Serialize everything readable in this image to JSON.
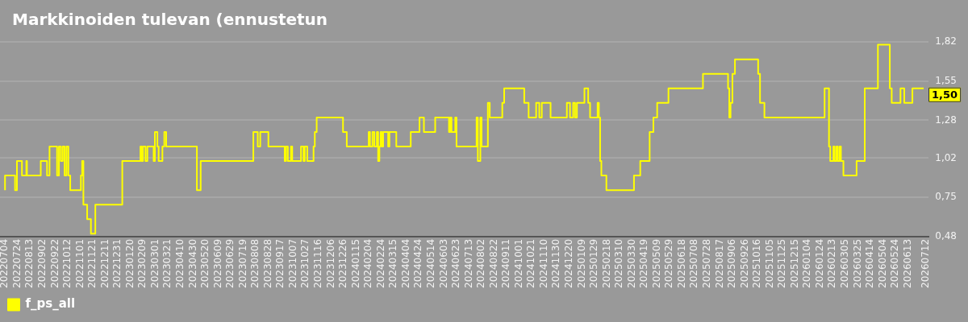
{
  "chart_data": {
    "type": "step",
    "title": "Markkinoiden tulevan (ennustetun",
    "x": [
      "2022-07-04",
      "2022-07-20",
      "2022-07-23",
      "2022-07-31",
      "2022-08-07",
      "2022-08-08",
      "2022-08-30",
      "2022-09-09",
      "2022-09-13",
      "2022-09-25",
      "2022-09-28",
      "2022-10-01",
      "2022-10-04",
      "2022-10-07",
      "2022-10-10",
      "2022-10-13",
      "2022-10-16",
      "2022-11-02",
      "2022-11-04",
      "2022-11-06",
      "2022-11-12",
      "2022-11-18",
      "2022-11-25",
      "2023-01-07",
      "2023-02-05",
      "2023-02-07",
      "2023-02-09",
      "2023-02-13",
      "2023-02-16",
      "2023-02-26",
      "2023-02-28",
      "2023-03-04",
      "2023-03-06",
      "2023-03-12",
      "2023-03-15",
      "2023-03-18",
      "2023-05-06",
      "2023-05-12",
      "2023-08-04",
      "2023-08-11",
      "2023-08-15",
      "2023-08-28",
      "2023-09-23",
      "2023-09-25",
      "2023-09-28",
      "2023-10-03",
      "2023-10-05",
      "2023-10-19",
      "2023-10-23",
      "2023-10-25",
      "2023-10-29",
      "2023-11-08",
      "2023-11-10",
      "2023-11-13",
      "2023-12-25",
      "2023-12-31",
      "2024-02-04",
      "2024-02-06",
      "2024-02-10",
      "2024-02-13",
      "2024-02-17",
      "2024-02-19",
      "2024-02-21",
      "2024-02-23",
      "2024-02-25",
      "2024-02-27",
      "2024-03-06",
      "2024-03-08",
      "2024-03-19",
      "2024-04-11",
      "2024-04-25",
      "2024-05-02",
      "2024-05-20",
      "2024-06-11",
      "2024-06-13",
      "2024-06-15",
      "2024-06-21",
      "2024-06-23",
      "2024-07-25",
      "2024-07-27",
      "2024-07-31",
      "2024-08-02",
      "2024-08-12",
      "2024-08-15",
      "2024-09-04",
      "2024-09-07",
      "2024-10-09",
      "2024-10-16",
      "2024-10-28",
      "2024-11-02",
      "2024-11-06",
      "2024-11-20",
      "2024-12-16",
      "2024-12-21",
      "2024-12-26",
      "2024-12-29",
      "2025-01-01",
      "2025-01-13",
      "2025-01-19",
      "2025-01-22",
      "2025-02-03",
      "2025-02-05",
      "2025-02-07",
      "2025-02-09",
      "2025-02-17",
      "2025-04-02",
      "2025-04-12",
      "2025-04-27",
      "2025-05-03",
      "2025-05-09",
      "2025-05-27",
      "2025-07-21",
      "2025-08-30",
      "2025-09-01",
      "2025-09-03",
      "2025-09-06",
      "2025-09-10",
      "2025-10-17",
      "2025-10-20",
      "2025-10-27",
      "2026-01-31",
      "2026-02-07",
      "2026-02-09",
      "2026-02-14",
      "2026-02-16",
      "2026-02-19",
      "2026-02-21",
      "2026-02-24",
      "2026-02-26",
      "2026-03-02",
      "2026-03-23",
      "2026-04-05",
      "2026-04-26",
      "2026-05-15",
      "2026-05-18",
      "2026-06-01",
      "2026-06-07",
      "2026-06-20",
      "2026-06-26",
      "2026-07-08"
    ],
    "series": [
      {
        "name": "f_ps_all",
        "color": "#ffff00",
        "values": [
          0.8,
          0.9,
          0.8,
          1.0,
          0.9,
          1.0,
          0.9,
          1.0,
          0.9,
          1.1,
          0.9,
          1.1,
          1.0,
          1.1,
          0.9,
          1.1,
          0.9,
          0.8,
          0.9,
          1.0,
          0.7,
          0.6,
          0.5,
          0.7,
          1.0,
          1.1,
          1.0,
          1.1,
          1.0,
          1.1,
          1.0,
          1.2,
          1.1,
          1.0,
          1.1,
          1.2,
          1.1,
          0.8,
          1.0,
          1.2,
          1.1,
          1.2,
          1.1,
          1.0,
          1.1,
          1.0,
          1.1,
          1.0,
          1.1,
          1.0,
          1.1,
          1.0,
          1.1,
          1.2,
          1.3,
          1.2,
          1.1,
          1.2,
          1.1,
          1.2,
          1.1,
          1.2,
          1.0,
          1.1,
          1.2,
          1.1,
          1.2,
          1.1,
          1.2,
          1.1,
          1.2,
          1.3,
          1.2,
          1.3,
          1.2,
          1.3,
          1.2,
          1.3,
          1.1,
          1.3,
          1.0,
          1.3,
          1.1,
          1.4,
          1.3,
          1.4,
          1.5,
          1.4,
          1.3,
          1.4,
          1.3,
          1.4,
          1.3,
          1.4,
          1.3,
          1.4,
          1.3,
          1.4,
          1.5,
          1.4,
          1.3,
          1.4,
          1.3,
          1.0,
          0.9,
          0.8,
          0.9,
          1.0,
          1.2,
          1.3,
          1.4,
          1.5,
          1.6,
          1.5,
          1.3,
          1.4,
          1.6,
          1.7,
          1.6,
          1.4,
          1.3,
          1.5,
          1.1,
          1.0,
          1.1,
          1.0,
          1.1,
          1.0,
          1.1,
          1.0,
          0.9,
          1.0,
          1.5,
          1.8,
          1.5,
          1.4,
          1.5,
          1.4,
          1.5,
          1.5
        ]
      }
    ],
    "xlim": [
      "2022-06-26",
      "2026-07-16"
    ],
    "xticks": [
      {
        "value": "2022-07-04",
        "label": "20220704"
      },
      {
        "value": "2022-07-24",
        "label": "20220724"
      },
      {
        "value": "2022-08-13",
        "label": "20220813"
      },
      {
        "value": "2022-09-02",
        "label": "20220902"
      },
      {
        "value": "2022-09-22",
        "label": "20220922"
      },
      {
        "value": "2022-10-12",
        "label": "20221012"
      },
      {
        "value": "2022-11-01",
        "label": "20221101"
      },
      {
        "value": "2022-11-21",
        "label": "20221121"
      },
      {
        "value": "2022-12-11",
        "label": "20221211"
      },
      {
        "value": "2022-12-31",
        "label": "20221231"
      },
      {
        "value": "2023-01-20",
        "label": "20230120"
      },
      {
        "value": "2023-02-09",
        "label": "20230209"
      },
      {
        "value": "2023-03-01",
        "label": "20230301"
      },
      {
        "value": "2023-03-21",
        "label": "20230321"
      },
      {
        "value": "2023-04-10",
        "label": "20230410"
      },
      {
        "value": "2023-04-30",
        "label": "20230430"
      },
      {
        "value": "2023-05-20",
        "label": "20230520"
      },
      {
        "value": "2023-06-09",
        "label": "20230609"
      },
      {
        "value": "2023-06-29",
        "label": "20230629"
      },
      {
        "value": "2023-07-19",
        "label": "20230719"
      },
      {
        "value": "2023-08-08",
        "label": "20230808"
      },
      {
        "value": "2023-08-28",
        "label": "20230828"
      },
      {
        "value": "2023-09-17",
        "label": "20230917"
      },
      {
        "value": "2023-10-07",
        "label": "20231007"
      },
      {
        "value": "2023-10-27",
        "label": "20231027"
      },
      {
        "value": "2023-11-16",
        "label": "20231116"
      },
      {
        "value": "2023-12-06",
        "label": "20231206"
      },
      {
        "value": "2023-12-26",
        "label": "20231226"
      },
      {
        "value": "2024-01-15",
        "label": "20240115"
      },
      {
        "value": "2024-02-04",
        "label": "20240204"
      },
      {
        "value": "2024-02-24",
        "label": "20240224"
      },
      {
        "value": "2024-03-15",
        "label": "20240315"
      },
      {
        "value": "2024-04-04",
        "label": "20240404"
      },
      {
        "value": "2024-04-24",
        "label": "20240424"
      },
      {
        "value": "2024-05-14",
        "label": "20240514"
      },
      {
        "value": "2024-06-03",
        "label": "20240603"
      },
      {
        "value": "2024-06-23",
        "label": "20240623"
      },
      {
        "value": "2024-07-13",
        "label": "20240713"
      },
      {
        "value": "2024-08-02",
        "label": "20240802"
      },
      {
        "value": "2024-08-22",
        "label": "20240822"
      },
      {
        "value": "2024-09-11",
        "label": "20240911"
      },
      {
        "value": "2024-10-01",
        "label": "20241001"
      },
      {
        "value": "2024-10-21",
        "label": "20241021"
      },
      {
        "value": "2024-11-10",
        "label": "20241110"
      },
      {
        "value": "2024-11-30",
        "label": "20241130"
      },
      {
        "value": "2024-12-20",
        "label": "20241220"
      },
      {
        "value": "2025-01-09",
        "label": "20250109"
      },
      {
        "value": "2025-01-29",
        "label": "20250129"
      },
      {
        "value": "2025-02-18",
        "label": "20250218"
      },
      {
        "value": "2025-03-10",
        "label": "20250310"
      },
      {
        "value": "2025-03-30",
        "label": "20250330"
      },
      {
        "value": "2025-04-19",
        "label": "20250419"
      },
      {
        "value": "2025-05-09",
        "label": "20250509"
      },
      {
        "value": "2025-05-29",
        "label": "20250529"
      },
      {
        "value": "2025-06-18",
        "label": "20250618"
      },
      {
        "value": "2025-07-08",
        "label": "20250708"
      },
      {
        "value": "2025-07-28",
        "label": "20250728"
      },
      {
        "value": "2025-08-17",
        "label": "20250817"
      },
      {
        "value": "2025-09-06",
        "label": "20250906"
      },
      {
        "value": "2025-09-26",
        "label": "20250926"
      },
      {
        "value": "2025-10-16",
        "label": "20251016"
      },
      {
        "value": "2025-11-05",
        "label": "20251105"
      },
      {
        "value": "2025-11-25",
        "label": "20251125"
      },
      {
        "value": "2025-12-15",
        "label": "20251215"
      },
      {
        "value": "2026-01-04",
        "label": "20260104"
      },
      {
        "value": "2026-01-24",
        "label": "20260124"
      },
      {
        "value": "2026-02-13",
        "label": "20260213"
      },
      {
        "value": "2026-03-05",
        "label": "20260305"
      },
      {
        "value": "2026-03-25",
        "label": "20260325"
      },
      {
        "value": "2026-04-14",
        "label": "20260414"
      },
      {
        "value": "2026-05-04",
        "label": "20260504"
      },
      {
        "value": "2026-05-24",
        "label": "20260524"
      },
      {
        "value": "2026-06-13",
        "label": "20260613"
      },
      {
        "value": "2026-07-12",
        "label": "20260712"
      }
    ],
    "ylim": [
      0.48,
      1.82
    ],
    "yticks": [
      {
        "value": 0.48,
        "label": "0,48"
      },
      {
        "value": 0.75,
        "label": "0,75"
      },
      {
        "value": 1.02,
        "label": "1,02"
      },
      {
        "value": 1.28,
        "label": "1,28"
      },
      {
        "value": 1.55,
        "label": "1,55"
      },
      {
        "value": 1.82,
        "label": "1,82"
      }
    ],
    "grid": "y",
    "legend": "bottom left",
    "marker": "none",
    "line_style": "solid",
    "annotations": [
      {
        "text": "1,50",
        "x": "2026-07-08",
        "y": 1.5
      }
    ]
  }
}
